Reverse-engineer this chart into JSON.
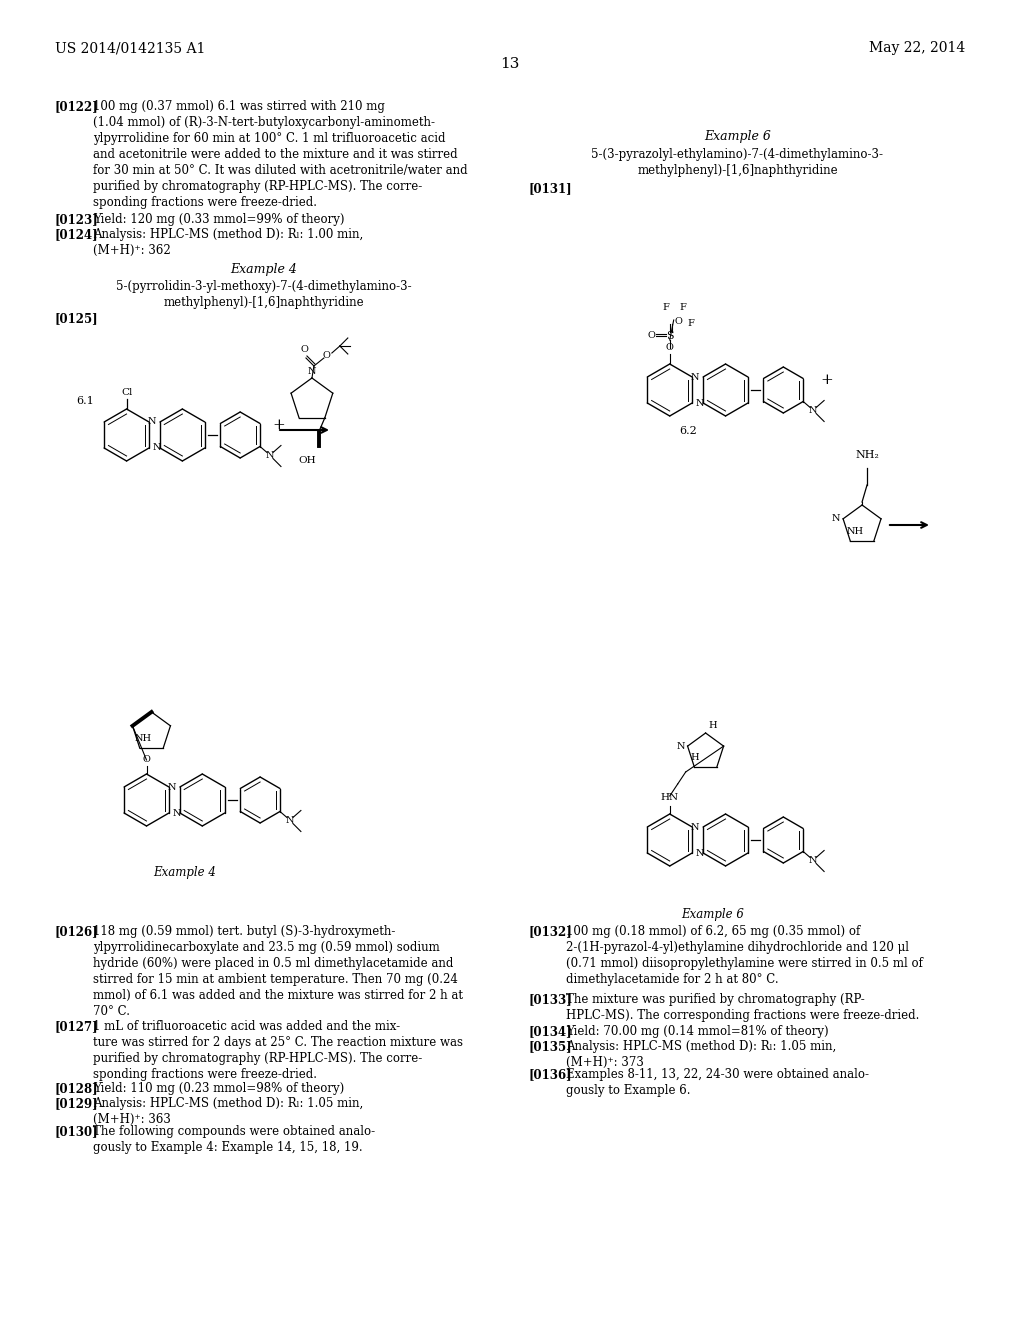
{
  "page_background": "#ffffff",
  "header_left": "US 2014/0142135 A1",
  "header_right": "May 22, 2014",
  "page_number": "13"
}
